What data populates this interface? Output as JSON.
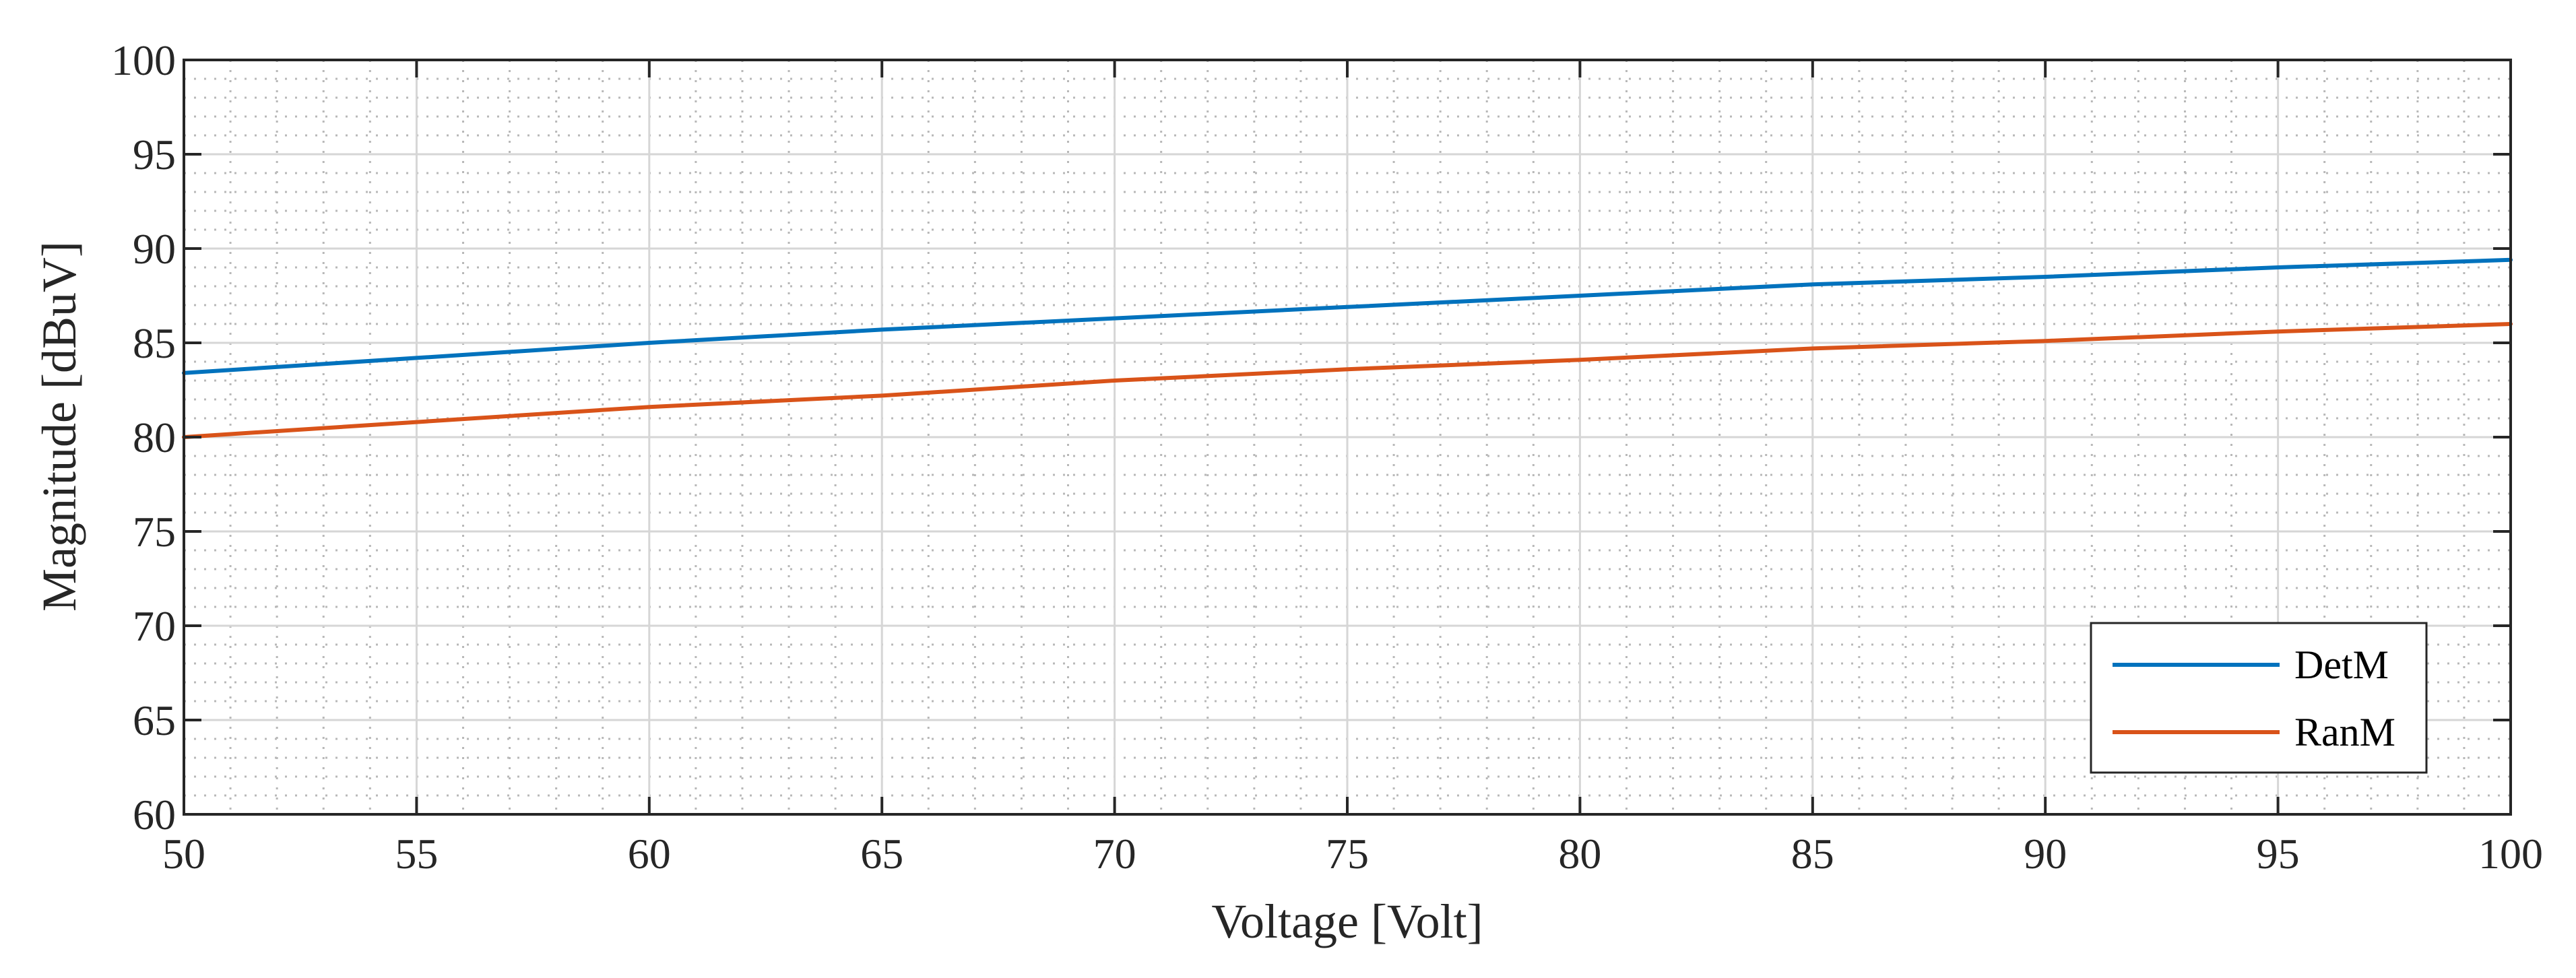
{
  "chart_data": {
    "type": "line",
    "title": "",
    "xlabel": "Voltage [Volt]",
    "ylabel": "Magnitude [dBuV]",
    "xlim": [
      50,
      100
    ],
    "ylim": [
      60,
      100
    ],
    "xticks": [
      "50",
      "55",
      "60",
      "65",
      "70",
      "75",
      "80",
      "85",
      "90",
      "95",
      "100"
    ],
    "yticks": [
      "60",
      "65",
      "70",
      "75",
      "80",
      "85",
      "90",
      "95",
      "100"
    ],
    "grid": true,
    "minor_grid": true,
    "legend": "bottom-right",
    "series": [
      {
        "name": "DetM",
        "color": "#0072BD",
        "x": [
          50,
          55,
          60,
          65,
          70,
          75,
          80,
          85,
          90,
          95,
          100
        ],
        "y": [
          83.4,
          84.2,
          85.0,
          85.7,
          86.3,
          86.9,
          87.5,
          88.1,
          88.5,
          89.0,
          89.4
        ]
      },
      {
        "name": "RanM",
        "color": "#D95319",
        "x": [
          50,
          55,
          60,
          65,
          70,
          75,
          80,
          85,
          90,
          95,
          100
        ],
        "y": [
          80.0,
          80.8,
          81.6,
          82.2,
          83.0,
          83.6,
          84.1,
          84.7,
          85.1,
          85.6,
          86.0
        ]
      }
    ]
  }
}
